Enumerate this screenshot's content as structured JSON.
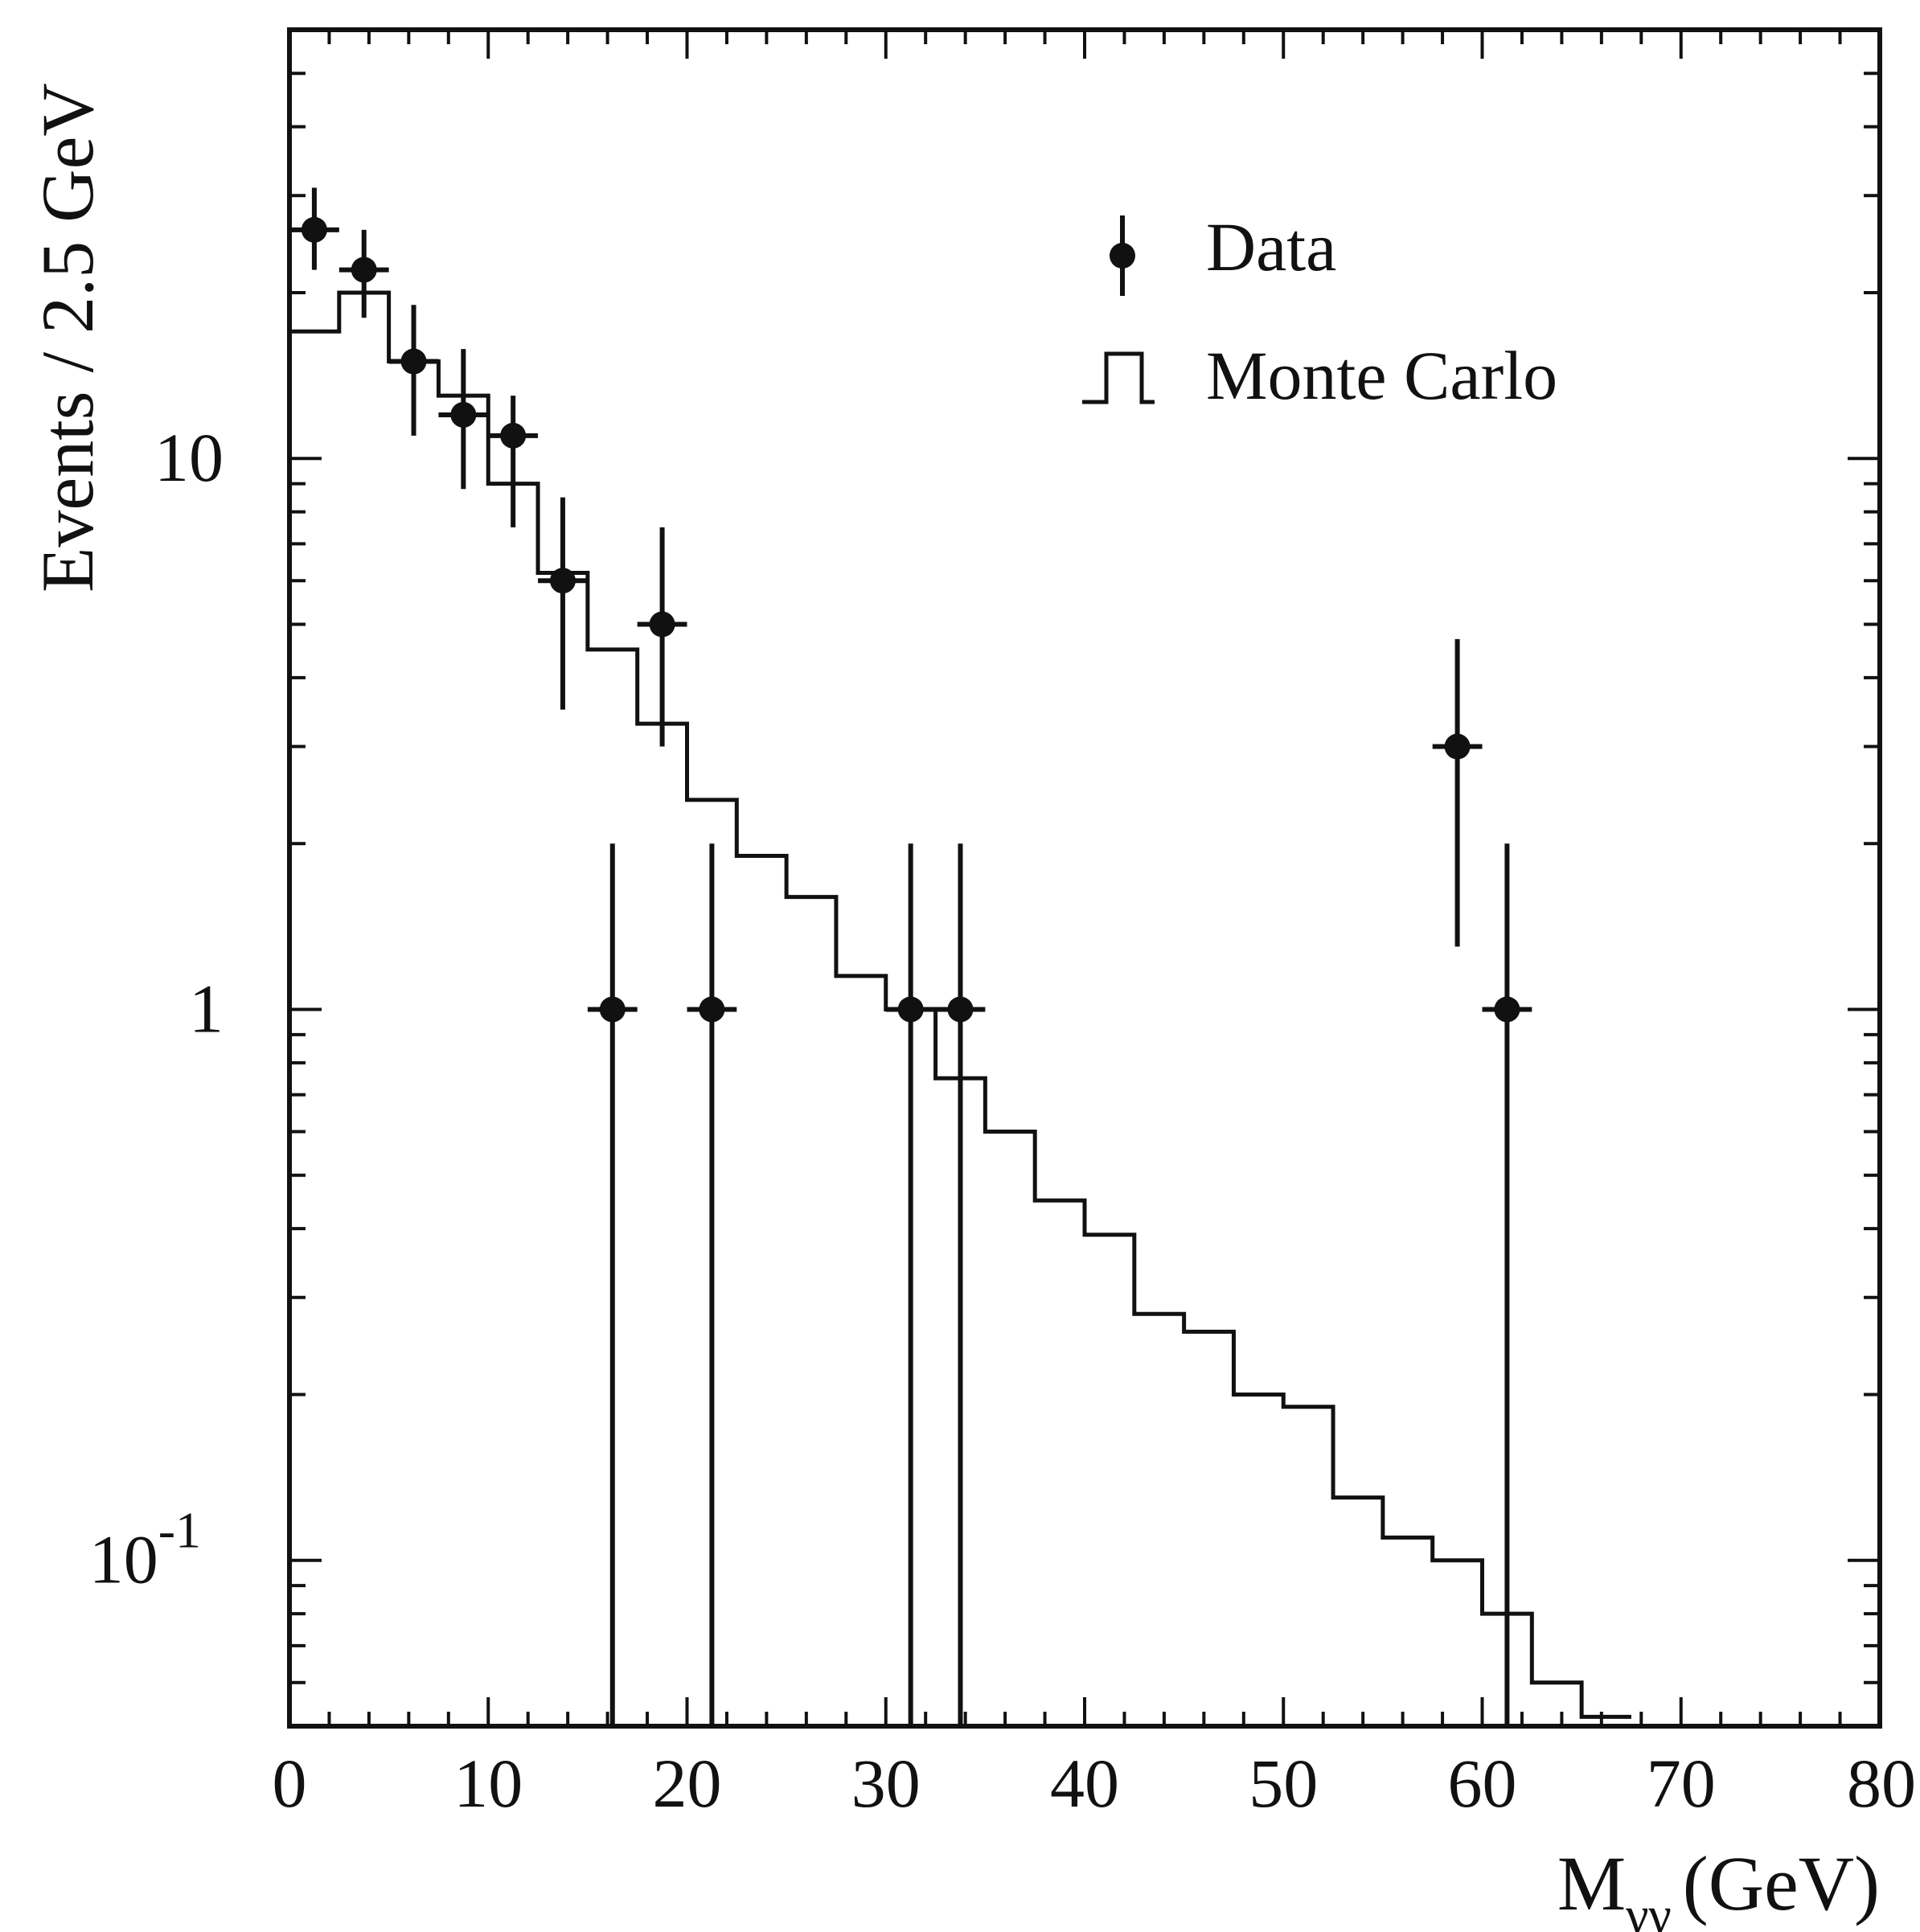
{
  "chart_data": {
    "type": "histogram",
    "ylabel": "Events / 2.5 GeV",
    "xlabel_main": "M",
    "xlabel_sub": "γγ",
    "xlabel_unit": "(GeV)",
    "yscale": "log",
    "xlim": [
      0,
      80
    ],
    "ylim": [
      0.05,
      60
    ],
    "x_ticks": [
      "0",
      "10",
      "20",
      "30",
      "40",
      "50",
      "60",
      "70",
      "80"
    ],
    "y_ticks": [
      {
        "value": 10,
        "label": "10",
        "exp": ""
      },
      {
        "value": 1,
        "label": "1",
        "exp": ""
      },
      {
        "value": 0.1,
        "label": "10",
        "exp": "-1"
      }
    ],
    "legend": [
      {
        "label": "Data",
        "kind": "data"
      },
      {
        "label": "Monte Carlo",
        "kind": "mc"
      }
    ],
    "series": [
      {
        "name": "Data",
        "style": "points-with-errors",
        "points": [
          {
            "x": 1.25,
            "y": 26,
            "ylo": 22,
            "yhi": 31
          },
          {
            "x": 3.75,
            "y": 22,
            "ylo": 18,
            "yhi": 26
          },
          {
            "x": 6.25,
            "y": 15,
            "ylo": 11,
            "yhi": 19
          },
          {
            "x": 8.75,
            "y": 12,
            "ylo": 8.8,
            "yhi": 15.8
          },
          {
            "x": 11.25,
            "y": 11,
            "ylo": 7.5,
            "yhi": 13
          },
          {
            "x": 13.75,
            "y": 6,
            "ylo": 3.5,
            "yhi": 8.5
          },
          {
            "x": 16.25,
            "y": 1,
            "ylo": 0.05,
            "yhi": 2
          },
          {
            "x": 18.75,
            "y": 5,
            "ylo": 3,
            "yhi": 7.5
          },
          {
            "x": 21.25,
            "y": 1,
            "ylo": 0.05,
            "yhi": 2
          },
          {
            "x": 31.25,
            "y": 1,
            "ylo": 0.05,
            "yhi": 2
          },
          {
            "x": 33.75,
            "y": 1,
            "ylo": 0.05,
            "yhi": 2
          },
          {
            "x": 58.75,
            "y": 3,
            "ylo": 1.3,
            "yhi": 4.7
          },
          {
            "x": 61.25,
            "y": 1,
            "ylo": 0.05,
            "yhi": 2
          }
        ]
      },
      {
        "name": "Monte Carlo",
        "style": "step",
        "bin_edges": [
          0,
          2.5,
          5,
          7.5,
          10,
          12.5,
          15,
          17.5,
          20,
          22.5,
          25,
          27.5,
          30,
          32.5,
          35,
          37.5,
          40,
          42.5,
          45,
          47.5,
          50,
          52.5,
          55,
          57.5,
          60,
          62.5,
          65,
          67.5
        ],
        "values": [
          17,
          20,
          15,
          13,
          9,
          6.2,
          4.5,
          3.3,
          2.4,
          1.9,
          1.6,
          1.15,
          1.0,
          0.75,
          0.6,
          0.45,
          0.39,
          0.28,
          0.26,
          0.2,
          0.19,
          0.13,
          0.11,
          0.1,
          0.08,
          0.06,
          0.052
        ]
      }
    ]
  }
}
